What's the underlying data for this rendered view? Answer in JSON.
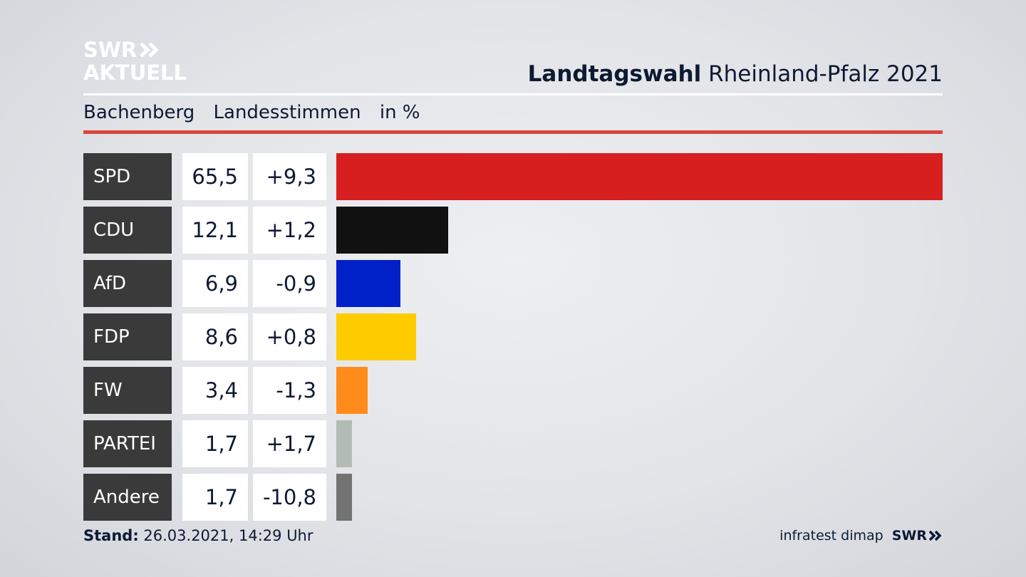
{
  "logo": {
    "line1": "SWR",
    "line2": "AKTUELL",
    "footer_logo": "SWR"
  },
  "header": {
    "title_bold": "Landtagswahl",
    "title_rest": "Rheinland-Pfalz 2021",
    "place": "Bachenberg",
    "measure": "Landesstimmen",
    "unit": "in %"
  },
  "chart_data": {
    "type": "bar",
    "categories": [
      "SPD",
      "CDU",
      "AfD",
      "FDP",
      "FW",
      "PARTEI",
      "Andere"
    ],
    "values": [
      65.5,
      12.1,
      6.9,
      8.6,
      3.4,
      1.7,
      1.7
    ],
    "value_labels": [
      "65,5",
      "12,1",
      "6,9",
      "8,6",
      "3,4",
      "1,7",
      "1,7"
    ],
    "diff_labels": [
      "+9,3",
      "+1,2",
      "-0,9",
      "+0,8",
      "-1,3",
      "+1,7",
      "-10,8"
    ],
    "colors": [
      "#d71f20",
      "#111111",
      "#0020c8",
      "#ffcc00",
      "#ff8c1a",
      "#b2bcb5",
      "#737373"
    ],
    "xlim": [
      0,
      65.5
    ],
    "grid": false,
    "legend": "none"
  },
  "footer": {
    "stand_label": "Stand:",
    "stand_value": "26.03.2021, 14:29 Uhr",
    "source": "infratest dimap"
  }
}
